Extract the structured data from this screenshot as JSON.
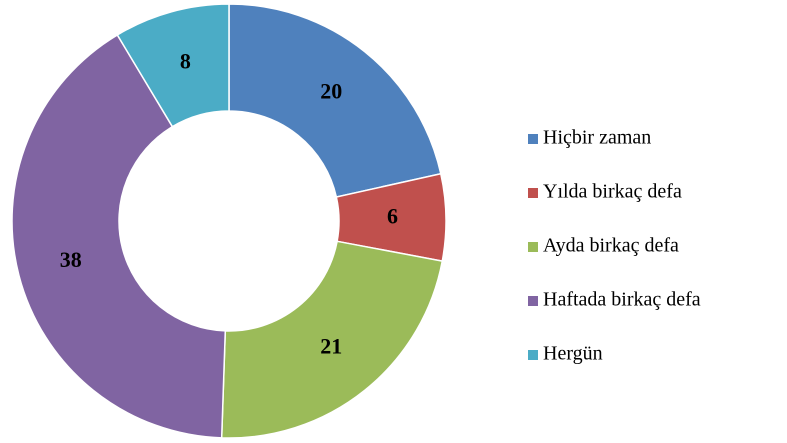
{
  "chart_data": {
    "type": "donut",
    "categories": [
      "Hiçbir zaman",
      "Yılda birkaç defa",
      "Ayda birkaç defa",
      "Haftada birkaç defa",
      "Hergün"
    ],
    "values": [
      20,
      6,
      21,
      38,
      8
    ],
    "colors": [
      "#4f81bd",
      "#c0504d",
      "#9bbb59",
      "#8064a2",
      "#4bacc6"
    ],
    "legend": "right"
  }
}
